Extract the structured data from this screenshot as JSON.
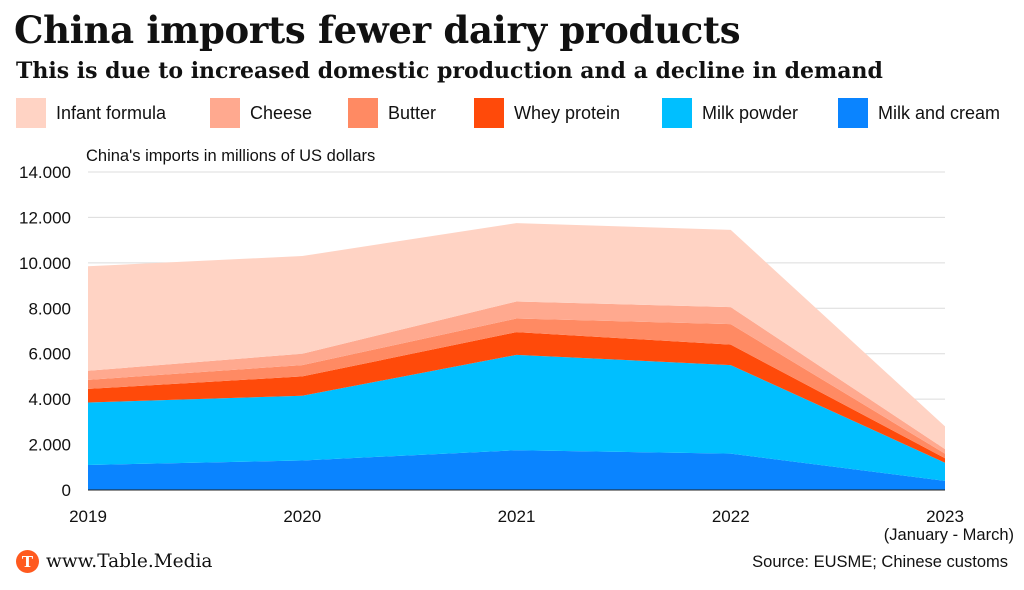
{
  "title": "China imports fewer dairy products",
  "subtitle": "This is due to increased domestic production and a decline in demand",
  "footer": {
    "logo_letter": "T",
    "brand": "www.Table.Media",
    "source": "Source: EUSME; Chinese customs"
  },
  "chart_data": {
    "type": "area",
    "stacked": true,
    "ylabel": "China's imports in millions of US dollars",
    "xlabel": "",
    "categories": [
      "2019",
      "2020",
      "2021",
      "2022",
      "2023"
    ],
    "category_sublabels": [
      "",
      "",
      "",
      "",
      "(January - March)"
    ],
    "ylim": [
      0,
      14000
    ],
    "yticks": [
      0,
      2000,
      4000,
      6000,
      8000,
      10000,
      12000,
      14000
    ],
    "ytick_labels": [
      "0",
      "2.000",
      "4.000",
      "6.000",
      "8.000",
      "10.000",
      "12.000",
      "14.000"
    ],
    "grid": true,
    "legend_position": "top",
    "series": [
      {
        "name": "Milk and cream",
        "color": "#0a84ff",
        "values": [
          1100,
          1300,
          1750,
          1600,
          400
        ]
      },
      {
        "name": "Milk powder",
        "color": "#00bfff",
        "values": [
          2750,
          2850,
          4200,
          3900,
          800
        ]
      },
      {
        "name": "Whey protein",
        "color": "#ff4a0a",
        "values": [
          600,
          850,
          1000,
          900,
          200
        ]
      },
      {
        "name": "Butter",
        "color": "#ff8a63",
        "values": [
          400,
          500,
          600,
          900,
          200
        ]
      },
      {
        "name": "Cheese",
        "color": "#ffa98f",
        "values": [
          400,
          500,
          750,
          750,
          200
        ]
      },
      {
        "name": "Infant formula",
        "color": "#ffd3c4",
        "values": [
          4600,
          4300,
          3450,
          3400,
          1000
        ]
      }
    ],
    "legend_order": [
      "Infant formula",
      "Cheese",
      "Butter",
      "Whey protein",
      "Milk powder",
      "Milk and cream"
    ]
  }
}
